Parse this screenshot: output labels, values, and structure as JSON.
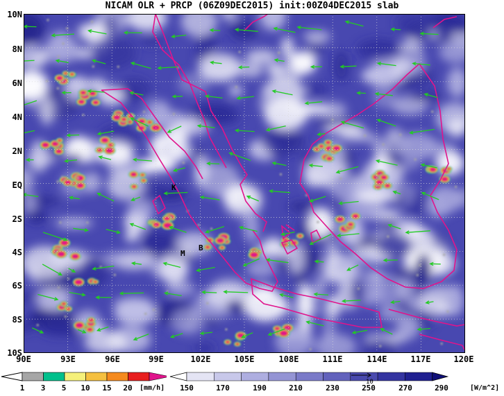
{
  "title": "NICAM OLR + PRCP (06Z09DEC2015) init:00Z04DEC2015 slab",
  "map": {
    "lon_range": [
      90,
      120
    ],
    "lat_range": [
      -10,
      10
    ],
    "y_labels": [
      "10N",
      "8N",
      "6N",
      "4N",
      "2N",
      "EQ",
      "2S",
      "4S",
      "6S",
      "8S",
      "10S"
    ],
    "x_labels": [
      "90E",
      "93E",
      "96E",
      "99E",
      "102E",
      "105E",
      "108E",
      "111E",
      "114E",
      "117E",
      "120E"
    ],
    "station_markers": [
      "K",
      "M",
      "B"
    ],
    "coastline_color": "#e0148c",
    "wind_vector_color": "#22cc22",
    "ocean_base_color": "#4a4ab0"
  },
  "precip_legend": {
    "values": [
      "1",
      "3",
      "5",
      "10",
      "15",
      "20"
    ],
    "unit": "[mm/h]",
    "colors": [
      "#a6a6a6",
      "#00c08c",
      "#f5f07a",
      "#f5c040",
      "#f58a1e",
      "#e81e1e",
      "#e0148c"
    ]
  },
  "olr_legend": {
    "values": [
      "150",
      "170",
      "190",
      "210",
      "230",
      "250",
      "270",
      "290"
    ],
    "unit": "[W/m^2]",
    "colors": [
      "#ffffff",
      "#e4e4f4",
      "#c8c8ea",
      "#aeaee0",
      "#9494d4",
      "#7a7ac8",
      "#6262bc",
      "#4a4aae",
      "#3434a0",
      "#202090",
      "#101078"
    ],
    "ref_vector_label": "10"
  }
}
